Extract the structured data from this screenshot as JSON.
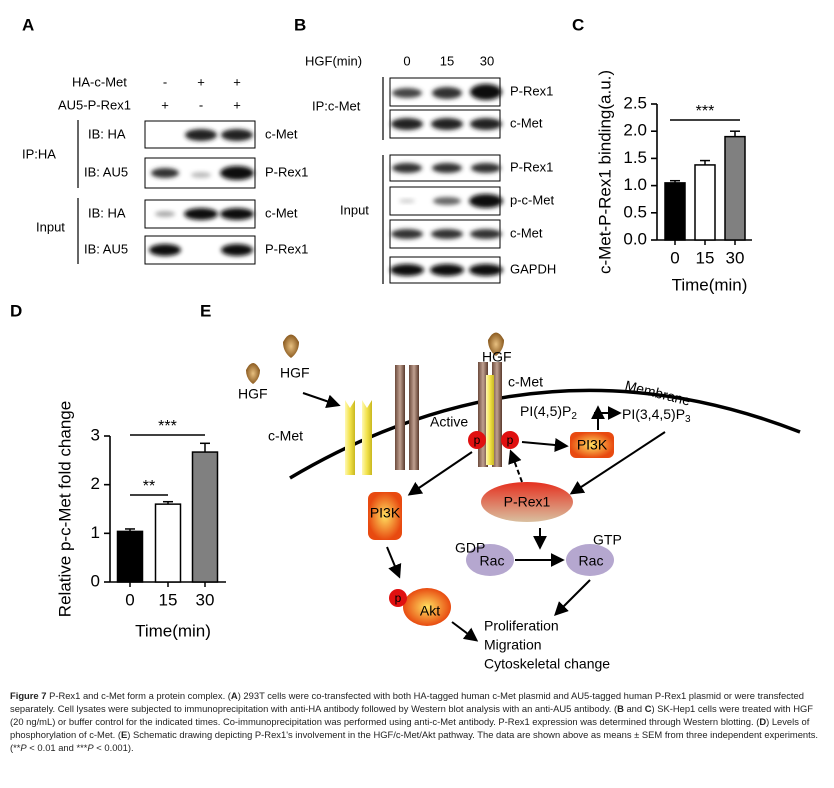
{
  "panel_labels": [
    "A",
    "B",
    "C",
    "D",
    "E"
  ],
  "panel_a": {
    "header_rows": [
      {
        "label": "HA-c-Met",
        "signs": [
          "-",
          "+",
          "+"
        ]
      },
      {
        "label": "AU5-P-Rex1",
        "signs": [
          "+",
          "-",
          "+"
        ]
      }
    ],
    "groups": [
      {
        "label": "IP:HA",
        "rows": [
          {
            "ib": "IB: HA",
            "target": "c-Met"
          },
          {
            "ib": "IB: AU5",
            "target": "P-Rex1"
          }
        ]
      },
      {
        "label": "Input",
        "rows": [
          {
            "ib": "IB: HA",
            "target": "c-Met"
          },
          {
            "ib": "IB: AU5",
            "target": "P-Rex1"
          }
        ]
      }
    ]
  },
  "panel_b": {
    "header": "HGF(min)",
    "times": [
      "0",
      "15",
      "30"
    ],
    "groups": [
      {
        "label": "IP:c-Met",
        "rows": [
          "P-Rex1",
          "c-Met"
        ]
      },
      {
        "label": "Input",
        "rows": [
          "P-Rex1",
          "p-c-Met",
          "c-Met",
          "GAPDH"
        ]
      }
    ]
  },
  "chart_data": [
    {
      "type": "bar",
      "y_label": "c-Met-P-Rex1 binding(a.u.)",
      "x_label": "Time(min)",
      "categories": [
        "0",
        "15",
        "30"
      ],
      "values": [
        1.05,
        1.38,
        1.9
      ],
      "errors": [
        0.04,
        0.08,
        0.1
      ],
      "colors": [
        "#000000",
        "#ffffff",
        "#808080"
      ],
      "ylim": [
        0,
        2.5
      ],
      "yticks": [
        {
          "value": 0,
          "label": "0.0"
        },
        0.5,
        {
          "value": 1,
          "label": "1.0"
        },
        1.5,
        {
          "value": 2,
          "label": "2.0"
        },
        2.5
      ],
      "annotations": [
        "***"
      ]
    },
    {
      "type": "bar",
      "y_label": "Relative p-c-Met fold change",
      "x_label": "Time(min)",
      "categories": [
        "0",
        "15",
        "30"
      ],
      "values": [
        1.04,
        1.6,
        2.67
      ],
      "errors": [
        0.05,
        0.05,
        0.18
      ],
      "colors": [
        "#000000",
        "#ffffff",
        "#808080"
      ],
      "ylim": [
        0,
        3
      ],
      "yticks": [
        0,
        1,
        2,
        3
      ],
      "annotations": [
        "**",
        "***"
      ]
    }
  ],
  "diagram": {
    "hgf": [
      "HGF",
      "HGF",
      "HGF"
    ],
    "cmet": [
      "c-Met",
      "c-Met"
    ],
    "active": "Active",
    "membrane": "Membrane",
    "pip2": {
      "text": "PI(4,5)P",
      "sub": "2"
    },
    "pip3": {
      "text": "PI(3,4,5)P",
      "sub": "3"
    },
    "pi3k": [
      "PI3K",
      "PI3K"
    ],
    "p": [
      "p",
      "p",
      "p"
    ],
    "prex1": "P-Rex1",
    "akt": "Akt",
    "gdp": "GDP",
    "gtp": "GTP",
    "rac": [
      "Rac",
      "Rac"
    ],
    "outcomes": [
      "Proliferation",
      "Migration",
      "Cytoskeletal change"
    ]
  },
  "caption": [
    {
      "text": "Figure 7",
      "style": "bold"
    },
    {
      "text": " P-Rex1 and c-Met form a protein complex. (",
      "style": "normal"
    },
    {
      "text": "A",
      "style": "bold"
    },
    {
      "text": ") 293T cells were co-transfected with both HA-tagged human c-Met plasmid and AU5-tagged human P-Rex1 plasmid or were transfected separately. Cell lysates were subjected to immunoprecipitation with anti-HA antibody followed by Western blot analysis with an anti-AU5 antibody. (",
      "style": "normal"
    },
    {
      "text": "B",
      "style": "bold"
    },
    {
      "text": " and ",
      "style": "normal"
    },
    {
      "text": "C",
      "style": "bold"
    },
    {
      "text": ") SK-Hep1 cells were treated with HGF (20 ng/mL) or buffer control for the indicated times. Co-immunoprecipitation was performed using anti-c-Met antibody. P-Rex1 expression was determined through Western blotting. (",
      "style": "normal"
    },
    {
      "text": "D",
      "style": "bold"
    },
    {
      "text": ") Levels of phosphorylation of c-Met. (",
      "style": "normal"
    },
    {
      "text": "E",
      "style": "bold"
    },
    {
      "text": ") Schematic drawing depicting P-Rex1's involvement in the HGF/c-Met/Akt pathway. The data are shown above as means ± SEM from three independent experiments. (**",
      "style": "normal"
    },
    {
      "text": "P",
      "style": "italic"
    },
    {
      "text": " < 0.01 and ***",
      "style": "normal"
    },
    {
      "text": "P",
      "style": "italic"
    },
    {
      "text": " < 0.001).",
      "style": "normal"
    }
  ]
}
